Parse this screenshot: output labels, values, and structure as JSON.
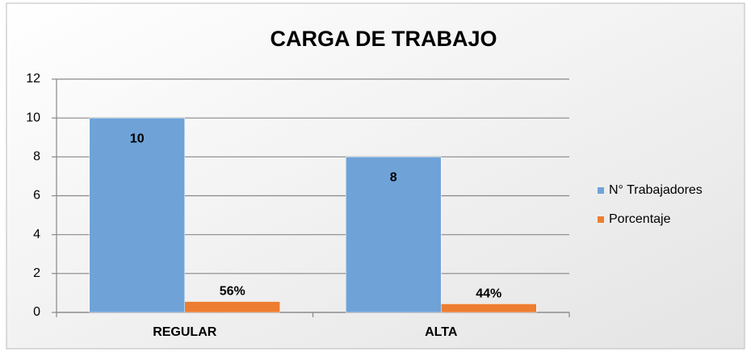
{
  "chart_data": {
    "type": "bar",
    "title": "CARGA DE TRABAJO",
    "categories": [
      "REGULAR",
      "ALTA"
    ],
    "series": [
      {
        "name": "N° Trabajadores",
        "color": "#6fa3d8",
        "values": [
          10,
          8
        ]
      },
      {
        "name": "Porcentaje",
        "color": "#ed7d31",
        "values": [
          0.56,
          0.44
        ],
        "value_labels": [
          "56%",
          "44%"
        ]
      }
    ],
    "ylim": [
      0,
      12
    ],
    "yticks": [
      0,
      2,
      4,
      6,
      8,
      10,
      12
    ],
    "grid": true,
    "legend": "right"
  }
}
